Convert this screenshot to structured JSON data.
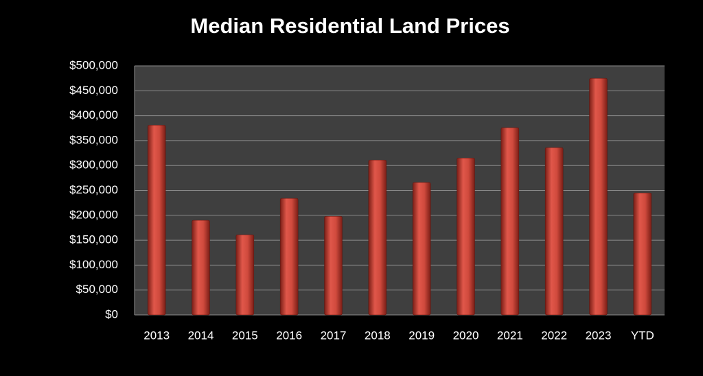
{
  "chart_data": {
    "type": "bar",
    "title": "Median Residential Land Prices",
    "categories": [
      "2013",
      "2014",
      "2015",
      "2016",
      "2017",
      "2018",
      "2019",
      "2020",
      "2021",
      "2022",
      "2023",
      "YTD"
    ],
    "values": [
      381000,
      190000,
      161000,
      234000,
      198000,
      311000,
      266000,
      315000,
      376000,
      336000,
      475000,
      245000
    ],
    "color": "#c0392b",
    "ylim": [
      0,
      500000
    ],
    "yticks": [
      {
        "value": 0,
        "label": "$0"
      },
      {
        "value": 50000,
        "label": "$50,000"
      },
      {
        "value": 100000,
        "label": "$100,000"
      },
      {
        "value": 150000,
        "label": "$150,000"
      },
      {
        "value": 200000,
        "label": "$200,000"
      },
      {
        "value": 250000,
        "label": "$250,000"
      },
      {
        "value": 300000,
        "label": "$300,000"
      },
      {
        "value": 350000,
        "label": "$350,000"
      },
      {
        "value": 400000,
        "label": "$400,000"
      },
      {
        "value": 450000,
        "label": "$450,000"
      },
      {
        "value": 500000,
        "label": "$500,000"
      }
    ],
    "grid": true
  }
}
